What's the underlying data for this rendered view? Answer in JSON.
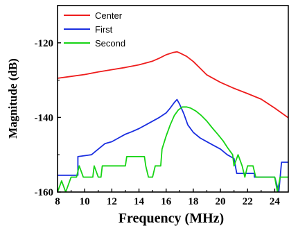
{
  "chart_data": {
    "type": "line",
    "xlabel": "Frequency (MHz)",
    "ylabel": "Magnitude (dB)",
    "xlim": [
      8,
      25
    ],
    "ylim": [
      -160,
      -110
    ],
    "xticks": [
      8,
      10,
      12,
      14,
      16,
      18,
      20,
      22,
      24
    ],
    "xtick_labels": [
      "8",
      "10",
      "12",
      "14",
      "16",
      "18",
      "20",
      "22",
      "24"
    ],
    "yticks": [
      -160,
      -140,
      -120
    ],
    "ytick_labels": [
      "-160",
      "-140",
      "-120"
    ],
    "grid": false,
    "legend": "top-left",
    "series": [
      {
        "name": "Center",
        "color": "#ee1c1c",
        "x": [
          8,
          9,
          10,
          11,
          12,
          13,
          14,
          15,
          15.5,
          16,
          16.5,
          16.8,
          17,
          17.5,
          18,
          18.5,
          19,
          20,
          21,
          22,
          23,
          24,
          25
        ],
        "y": [
          -129.5,
          -129,
          -128.5,
          -127.8,
          -127.2,
          -126.6,
          -125.9,
          -124.9,
          -124.1,
          -123.2,
          -122.6,
          -122.4,
          -122.7,
          -123.6,
          -125.0,
          -126.8,
          -128.6,
          -130.6,
          -132.2,
          -133.6,
          -135.1,
          -137.5,
          -140.1
        ]
      },
      {
        "name": "First",
        "color": "#1a2ee0",
        "x": [
          8,
          9.5,
          9.5,
          10.5,
          11,
          11.5,
          12,
          12.5,
          13,
          13.5,
          14,
          14.5,
          15,
          15.5,
          16,
          16.3,
          16.6,
          16.8,
          17,
          17.3,
          17.6,
          18,
          18.5,
          19,
          19.5,
          20,
          20.5,
          21,
          21.2,
          22.5,
          22.5,
          24,
          24.3,
          24.5,
          25
        ],
        "y": [
          -155.5,
          -155.5,
          -150.5,
          -150,
          -148.5,
          -147,
          -146.5,
          -145.5,
          -144.5,
          -143.8,
          -143,
          -142,
          -141,
          -140,
          -138.8,
          -137.5,
          -136,
          -135.2,
          -136.5,
          -139,
          -142,
          -144,
          -145.5,
          -146.5,
          -147.5,
          -148.5,
          -150,
          -151,
          -155,
          -155,
          -156,
          -156,
          -160,
          -152,
          -152
        ]
      },
      {
        "name": "Second",
        "color": "#16d414",
        "x": [
          8,
          8.3,
          8.6,
          9,
          9.4,
          9.6,
          9.9,
          10.1,
          10.6,
          10.7,
          11.0,
          11.2,
          11.3,
          11.5,
          12.2,
          13,
          13.1,
          14.4,
          14.5,
          14.7,
          15.0,
          15.2,
          15.6,
          15.7,
          16,
          16.3,
          16.6,
          16.9,
          17.2,
          17.5,
          17.8,
          18.2,
          18.6,
          19,
          19.4,
          19.8,
          20.2,
          20.5,
          20.9,
          21.0,
          21.3,
          21.6,
          21.8,
          22,
          22.4,
          22.6,
          23,
          24,
          24.2,
          24.4,
          25
        ],
        "y": [
          -160,
          -157,
          -160,
          -156,
          -156,
          -153,
          -156,
          -156,
          -156,
          -153,
          -156,
          -156,
          -153,
          -153,
          -153,
          -153,
          -150.5,
          -150.5,
          -153,
          -156,
          -156,
          -153,
          -153,
          -148.5,
          -145,
          -142,
          -139.5,
          -138,
          -137.2,
          -137.2,
          -137.5,
          -138.3,
          -139.5,
          -141,
          -142.8,
          -144.5,
          -146.3,
          -148,
          -150,
          -153,
          -150,
          -153,
          -156,
          -153,
          -153,
          -156,
          -156,
          -156,
          -160,
          -156,
          -156
        ]
      }
    ]
  }
}
